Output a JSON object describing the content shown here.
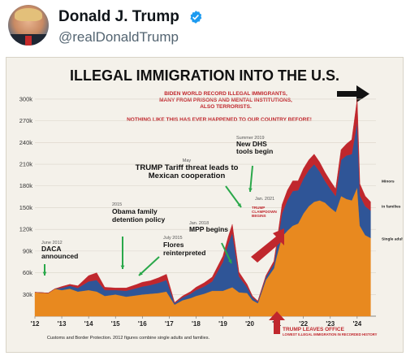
{
  "tweet": {
    "author_name": "Donald J. Trump",
    "handle": "@realDonaldTrump",
    "avatar_icon": "profile-photo",
    "verified_icon": "verified-badge-icon"
  },
  "chart_data": {
    "type": "area",
    "title": "ILLEGAL IMMIGRATION INTO THE U.S.",
    "subtitle_lines": [
      "BIDEN WORLD RECORD ILLEGAL IMMIGRANTS,",
      "MANY FROM PRISONS AND MENTAL INSTITUTIONS,",
      "ALSO TERRORISTS."
    ],
    "subtitle2": "NOTHING LIKE THIS HAS EVER HAPPENED TO OUR COUNTRY BEFORE!",
    "ylim": [
      0,
      310000
    ],
    "xlim": [
      2012,
      2024.7
    ],
    "yticks": [
      30000,
      60000,
      90000,
      120000,
      150000,
      180000,
      210000,
      240000,
      270000,
      300000
    ],
    "ytick_labels": [
      "30k",
      "60k",
      "90k",
      "120k",
      "150k",
      "180k",
      "210k",
      "240k",
      "270k",
      "300k"
    ],
    "xticks": [
      2012,
      2013,
      2014,
      2015,
      2016,
      2017,
      2018,
      2019,
      2020,
      2021,
      2022,
      2023,
      2024
    ],
    "xtick_labels": [
      "'12",
      "'13",
      "'14",
      "'15",
      "'16",
      "'17",
      "'18",
      "'19",
      "'20",
      "'21",
      "'22",
      "'23",
      "'24"
    ],
    "series": [
      {
        "name": "Single adults",
        "color": "#e8891f",
        "x": [
          2012.0,
          2012.5,
          2012.75,
          2013.0,
          2013.3,
          2013.6,
          2014.0,
          2014.3,
          2014.6,
          2015.0,
          2015.4,
          2015.8,
          2016.0,
          2016.3,
          2016.6,
          2016.9,
          2017.2,
          2017.5,
          2017.8,
          2018.0,
          2018.3,
          2018.6,
          2019.0,
          2019.2,
          2019.35,
          2019.6,
          2019.9,
          2020.1,
          2020.3,
          2020.6,
          2020.9,
          2021.0,
          2021.2,
          2021.4,
          2021.6,
          2021.8,
          2022.0,
          2022.2,
          2022.4,
          2022.6,
          2022.8,
          2023.0,
          2023.2,
          2023.4,
          2023.6,
          2023.8,
          2024.0,
          2024.1,
          2024.3,
          2024.5
        ],
        "values": [
          33000,
          32000,
          38000,
          36000,
          38000,
          34000,
          36000,
          34000,
          28000,
          30000,
          27000,
          29000,
          30000,
          31000,
          32000,
          34000,
          16000,
          22000,
          25000,
          28000,
          31000,
          35000,
          35000,
          38000,
          40000,
          33000,
          32000,
          22000,
          18000,
          50000,
          66000,
          82000,
          110000,
          118000,
          125000,
          128000,
          142000,
          152000,
          158000,
          160000,
          157000,
          150000,
          144000,
          166000,
          162000,
          160000,
          178000,
          125000,
          112000,
          108000
        ]
      },
      {
        "name": "In families",
        "color": "#2f5597",
        "x": [
          2012.0,
          2012.5,
          2012.75,
          2013.0,
          2013.3,
          2013.6,
          2014.0,
          2014.3,
          2014.6,
          2015.0,
          2015.4,
          2015.8,
          2016.0,
          2016.3,
          2016.6,
          2016.9,
          2017.2,
          2017.5,
          2017.8,
          2018.0,
          2018.3,
          2018.6,
          2019.0,
          2019.2,
          2019.35,
          2019.6,
          2019.9,
          2020.1,
          2020.3,
          2020.6,
          2020.9,
          2021.0,
          2021.2,
          2021.4,
          2021.6,
          2021.8,
          2022.0,
          2022.2,
          2022.4,
          2022.6,
          2022.8,
          2023.0,
          2023.2,
          2023.4,
          2023.6,
          2023.8,
          2024.0,
          2024.1,
          2024.3,
          2024.5
        ],
        "values": [
          0,
          0,
          0,
          3000,
          4000,
          5000,
          12000,
          16000,
          8000,
          6000,
          8000,
          10000,
          11000,
          12000,
          14000,
          16000,
          2000,
          4000,
          6000,
          8000,
          10000,
          13000,
          40000,
          62000,
          75000,
          22000,
          8000,
          4000,
          2000,
          4000,
          6000,
          12000,
          32000,
          42000,
          48000,
          46000,
          48000,
          50000,
          52000,
          40000,
          30000,
          26000,
          22000,
          50000,
          60000,
          64000,
          90000,
          42000,
          40000,
          38000
        ]
      },
      {
        "name": "Minors",
        "color": "#c0272d",
        "x": [
          2012.0,
          2012.5,
          2012.75,
          2013.0,
          2013.3,
          2013.6,
          2014.0,
          2014.3,
          2014.6,
          2015.0,
          2015.4,
          2015.8,
          2016.0,
          2016.3,
          2016.6,
          2016.9,
          2017.2,
          2017.5,
          2017.8,
          2018.0,
          2018.3,
          2018.6,
          2019.0,
          2019.2,
          2019.35,
          2019.6,
          2019.9,
          2020.1,
          2020.3,
          2020.6,
          2020.9,
          2021.0,
          2021.2,
          2021.4,
          2021.6,
          2021.8,
          2022.0,
          2022.2,
          2022.4,
          2022.6,
          2022.8,
          2023.0,
          2023.2,
          2023.4,
          2023.6,
          2023.8,
          2024.0,
          2024.1,
          2024.3,
          2024.5
        ],
        "values": [
          0,
          0,
          0,
          2000,
          2000,
          3000,
          8000,
          10000,
          4000,
          3000,
          4000,
          5000,
          6000,
          6000,
          7000,
          8000,
          1000,
          2000,
          3000,
          4000,
          5000,
          6000,
          8000,
          10000,
          12000,
          6000,
          4000,
          2000,
          1000,
          2000,
          4000,
          6000,
          12000,
          14000,
          14000,
          13000,
          14000,
          14000,
          14000,
          13000,
          12000,
          11000,
          10000,
          14000,
          16000,
          20000,
          32000,
          16000,
          14000,
          12000
        ]
      }
    ],
    "legend": {
      "placement": "right",
      "labels": [
        "Minors",
        "In families",
        "Single adults"
      ]
    },
    "annotations": [
      {
        "text_lines": [
          "June 2012",
          "DACA",
          "announced"
        ]
      },
      {
        "text_lines": [
          "2015",
          "Obama family",
          "detention policy"
        ]
      },
      {
        "text_lines": [
          "July 2015",
          "Flores",
          "reinterpreted"
        ]
      },
      {
        "text_lines": [
          "May",
          "TRUMP Tariff threat leads to",
          "Mexican cooperation"
        ]
      },
      {
        "text_lines": [
          "Jan. 2018",
          "MPP begins"
        ]
      },
      {
        "text_lines": [
          "Summer 2019",
          "New DHS",
          "tools begin"
        ]
      },
      {
        "text_lines": [
          "Jan. 2021"
        ]
      },
      {
        "text_lines": [
          "TRUMP",
          "CLAMPDOWN",
          "BEGINS"
        ]
      },
      {
        "text_lines": [
          "TRUMP LEAVES OFFICE",
          "LOWEST ILLEGAL IMMIGRATION IN RECORDED HISTORY"
        ]
      }
    ],
    "source_note": "Customs and Border Protection. 2012 figures combine single adults and families.",
    "grid": true
  }
}
